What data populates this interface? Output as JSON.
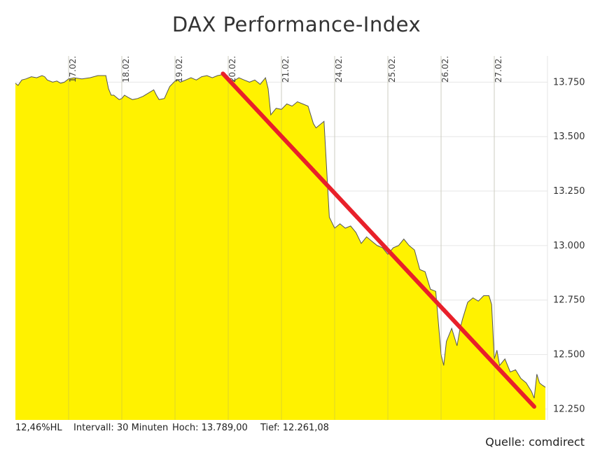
{
  "chart_data": {
    "type": "area",
    "title": "DAX Performance-Index",
    "xlabel": "",
    "ylabel": "",
    "ylim": [
      12200,
      13870
    ],
    "yticks": [
      12250,
      12500,
      12750,
      13000,
      13250,
      13500,
      13750
    ],
    "ytick_labels": [
      "12.250",
      "12.500",
      "12.750",
      "13.000",
      "13.250",
      "13.500",
      "13.750"
    ],
    "x_day_labels": [
      "17.02.",
      "18.02.",
      "19.02.",
      "20.02.",
      "21.02.",
      "24.02.",
      "25.02.",
      "26.02.",
      "27.02."
    ],
    "x_day_starts": [
      1,
      2,
      3,
      4,
      5,
      6,
      7,
      8,
      9
    ],
    "xlim": [
      0,
      10
    ],
    "grid": true,
    "series": [
      {
        "x": [
          0,
          0.05,
          0.12,
          0.2,
          0.3,
          0.4,
          0.5,
          0.55,
          0.6,
          0.7,
          0.78,
          0.85,
          0.92,
          1.0,
          1.1,
          1.25,
          1.4,
          1.55,
          1.7,
          1.75,
          1.8,
          1.85,
          1.9,
          1.95,
          2.0,
          2.05,
          2.12,
          2.2,
          2.3,
          2.4,
          2.5,
          2.6,
          2.65,
          2.7,
          2.8,
          2.9,
          3.0,
          3.05,
          3.1,
          3.2,
          3.3,
          3.4,
          3.5,
          3.6,
          3.7,
          3.8,
          3.9,
          4.0,
          4.1,
          4.2,
          4.3,
          4.4,
          4.5,
          4.6,
          4.7,
          4.75,
          4.8,
          4.9,
          5.0,
          5.1,
          5.2,
          5.3,
          5.4,
          5.5,
          5.6,
          5.65,
          5.7,
          5.75,
          5.8,
          5.9,
          6.0,
          6.1,
          6.2,
          6.3,
          6.4,
          6.5,
          6.6,
          6.7,
          6.8,
          6.9,
          7.0,
          7.1,
          7.2,
          7.3,
          7.4,
          7.5,
          7.6,
          7.7,
          7.8,
          7.9,
          8.0,
          8.05,
          8.1,
          8.2,
          8.3,
          8.35,
          8.4,
          8.5,
          8.6,
          8.7,
          8.8,
          8.9,
          8.95,
          9.0,
          9.05,
          9.1,
          9.2,
          9.3,
          9.4,
          9.5,
          9.6,
          9.7,
          9.75,
          9.8,
          9.85,
          9.9,
          9.96
        ],
        "y": [
          13745,
          13735,
          13760,
          13765,
          13775,
          13770,
          13780,
          13775,
          13760,
          13750,
          13755,
          13745,
          13750,
          13765,
          13770,
          13765,
          13770,
          13780,
          13780,
          13720,
          13690,
          13690,
          13680,
          13670,
          13675,
          13690,
          13680,
          13670,
          13675,
          13685,
          13700,
          13715,
          13690,
          13670,
          13675,
          13730,
          13755,
          13760,
          13750,
          13760,
          13770,
          13760,
          13775,
          13780,
          13770,
          13780,
          13785,
          13765,
          13755,
          13770,
          13760,
          13750,
          13760,
          13740,
          13770,
          13720,
          13600,
          13630,
          13625,
          13650,
          13640,
          13660,
          13650,
          13640,
          13560,
          13540,
          13550,
          13560,
          13570,
          13130,
          13080,
          13100,
          13080,
          13090,
          13060,
          13010,
          13040,
          13020,
          13000,
          12990,
          12960,
          12990,
          13000,
          13030,
          13000,
          12980,
          12890,
          12880,
          12800,
          12790,
          12500,
          12450,
          12560,
          12620,
          12540,
          12610,
          12660,
          12740,
          12760,
          12745,
          12770,
          12770,
          12730,
          12480,
          12520,
          12450,
          12480,
          12420,
          12430,
          12390,
          12370,
          12330,
          12300,
          12410,
          12370,
          12360,
          12350
        ],
        "fill": "#fff200",
        "line": "#555555"
      }
    ],
    "trendline": {
      "x": [
        3.9,
        9.75
      ],
      "y": [
        13789,
        12261
      ],
      "color": "#e8202a"
    }
  },
  "footer": {
    "range": "12,46%HL",
    "interval": "Intervall: 30 Minuten",
    "high": "Hoch:  13.789,00",
    "low": "Tief:  12.261,08"
  },
  "source": "Quelle: comdirect"
}
